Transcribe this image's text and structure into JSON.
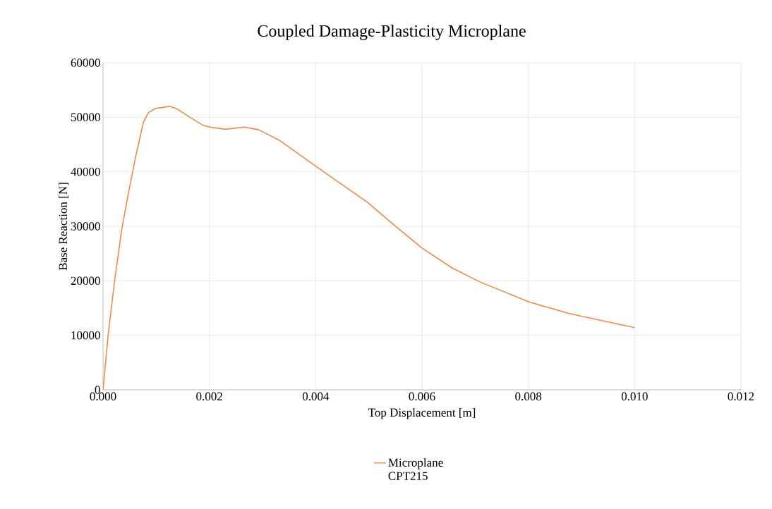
{
  "chart_data": {
    "type": "line",
    "title": "Coupled Damage-Plasticity Microplane",
    "xlabel": "Top Displacement [m]",
    "ylabel": "Base Reaction [N]",
    "x": [
      0,
      0.0001,
      0.00022,
      0.00035,
      0.00047,
      0.00061,
      0.00076,
      0.00085,
      0.00098,
      0.00125,
      0.00138,
      0.00165,
      0.00187,
      0.002,
      0.00231,
      0.00266,
      0.00293,
      0.00333,
      0.00399,
      0.00443,
      0.00496,
      0.00549,
      0.006,
      0.00656,
      0.00709,
      0.00802,
      0.00877,
      0.01
    ],
    "series": [
      {
        "name": "Microplane CPT215",
        "color": "#f08a45",
        "values": [
          0,
          10400,
          20200,
          29300,
          35700,
          42600,
          49100,
          50800,
          51600,
          52000,
          51600,
          49900,
          48600,
          48200,
          47800,
          48200,
          47700,
          45700,
          41100,
          38100,
          34500,
          30100,
          26000,
          22400,
          19800,
          16100,
          14000,
          11400
        ]
      }
    ],
    "xlim": [
      0,
      0.012
    ],
    "xticks": [
      {
        "value": 0,
        "label": "0.000"
      },
      {
        "value": 0.002,
        "label": "0.002"
      },
      {
        "value": 0.004,
        "label": "0.004"
      },
      {
        "value": 0.006,
        "label": "0.006"
      },
      {
        "value": 0.008,
        "label": "0.008"
      },
      {
        "value": 0.01,
        "label": "0.010"
      },
      {
        "value": 0.012,
        "label": "0.012"
      }
    ],
    "ylim": [
      0,
      60000
    ],
    "yticks": [
      0,
      10000,
      20000,
      30000,
      40000,
      50000,
      60000
    ],
    "grid": true,
    "legend": "bottom",
    "marker": "none",
    "line_style": "solid"
  }
}
